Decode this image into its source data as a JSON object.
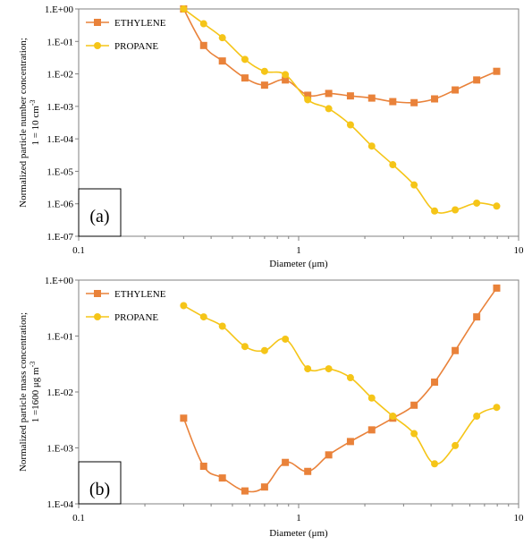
{
  "colors": {
    "ethylene": "#E9823A",
    "propane": "#F5C518"
  },
  "chart_data": [
    {
      "type": "line",
      "panel_label": "(a)",
      "xlabel": "Diameter  (μm)",
      "ylabel_line1": "Normalized  particle  number  concentration;",
      "ylabel_line2": "1 = 10 cm",
      "ylabel_sup": "-3",
      "x_scale": "log",
      "y_scale": "log",
      "xlim": [
        0.1,
        10
      ],
      "ylim": [
        1e-07,
        1
      ],
      "x_ticks": [
        {
          "v": 0.1,
          "label": "0.1"
        },
        {
          "v": 1,
          "label": "1"
        },
        {
          "v": 10,
          "label": "10"
        }
      ],
      "y_ticks": [
        {
          "v": 1,
          "label": "1.E+00"
        },
        {
          "v": 0.1,
          "label": "1.E-01"
        },
        {
          "v": 0.01,
          "label": "1.E-02"
        },
        {
          "v": 0.001,
          "label": "1.E-03"
        },
        {
          "v": 0.0001,
          "label": "1.E-04"
        },
        {
          "v": 1e-05,
          "label": "1.E-05"
        },
        {
          "v": 1e-06,
          "label": "1.E-06"
        },
        {
          "v": 1e-07,
          "label": "1.E-07"
        }
      ],
      "legend": "top-left",
      "series": [
        {
          "name": "ETHYLENE",
          "marker": "square",
          "color_key": "ethylene",
          "x": [
            0.3,
            0.37,
            0.45,
            0.57,
            0.7,
            0.87,
            1.1,
            1.37,
            1.72,
            2.15,
            2.68,
            3.35,
            4.15,
            5.15,
            6.45,
            7.95
          ],
          "y": [
            1.0,
            0.075,
            0.025,
            0.0075,
            0.0045,
            0.0065,
            0.0022,
            0.0025,
            0.0021,
            0.0018,
            0.0014,
            0.0013,
            0.0017,
            0.0032,
            0.0065,
            0.012
          ]
        },
        {
          "name": "PROPANE",
          "marker": "circle",
          "color_key": "propane",
          "x": [
            0.3,
            0.37,
            0.45,
            0.57,
            0.7,
            0.87,
            1.1,
            1.37,
            1.72,
            2.15,
            2.68,
            3.35,
            4.15,
            5.15,
            6.45,
            7.95
          ],
          "y": [
            1.0,
            0.35,
            0.13,
            0.028,
            0.012,
            0.0095,
            0.0016,
            0.00085,
            0.00027,
            6e-05,
            1.6e-05,
            3.8e-06,
            6e-07,
            6.5e-07,
            1.05e-06,
            8.5e-07
          ]
        }
      ]
    },
    {
      "type": "line",
      "panel_label": "(b)",
      "xlabel": "Diameter  (μm)",
      "ylabel_line1": "Normalized  particle  mass  concentration;",
      "ylabel_line2": "1 =1600  μg m",
      "ylabel_sup": "-3",
      "x_scale": "log",
      "y_scale": "log",
      "xlim": [
        0.1,
        10
      ],
      "ylim": [
        0.0001,
        1
      ],
      "x_ticks": [
        {
          "v": 0.1,
          "label": "0.1"
        },
        {
          "v": 1,
          "label": "1"
        },
        {
          "v": 10,
          "label": "10"
        }
      ],
      "y_ticks": [
        {
          "v": 1,
          "label": "1.E+00"
        },
        {
          "v": 0.1,
          "label": "1.E-01"
        },
        {
          "v": 0.01,
          "label": "1.E-02"
        },
        {
          "v": 0.001,
          "label": "1.E-03"
        },
        {
          "v": 0.0001,
          "label": "1.E-04"
        }
      ],
      "legend": "top-left",
      "series": [
        {
          "name": "ETHYLENE",
          "marker": "square",
          "color_key": "ethylene",
          "x": [
            0.3,
            0.37,
            0.45,
            0.57,
            0.7,
            0.87,
            1.1,
            1.37,
            1.72,
            2.15,
            2.68,
            3.35,
            4.15,
            5.15,
            6.45,
            7.95
          ],
          "y": [
            0.0034,
            0.00047,
            0.00029,
            0.00017,
            0.0002,
            0.00055,
            0.00038,
            0.00075,
            0.0013,
            0.0021,
            0.0034,
            0.0058,
            0.015,
            0.055,
            0.22,
            0.72
          ]
        },
        {
          "name": "PROPANE",
          "marker": "circle",
          "color_key": "propane",
          "x": [
            0.3,
            0.37,
            0.45,
            0.57,
            0.7,
            0.87,
            1.1,
            1.37,
            1.72,
            2.15,
            2.68,
            3.35,
            4.15,
            5.15,
            6.45,
            7.95
          ],
          "y": [
            0.35,
            0.22,
            0.15,
            0.065,
            0.055,
            0.088,
            0.026,
            0.026,
            0.018,
            0.0078,
            0.0037,
            0.0018,
            0.00052,
            0.0011,
            0.0037,
            0.0053
          ]
        }
      ]
    }
  ]
}
